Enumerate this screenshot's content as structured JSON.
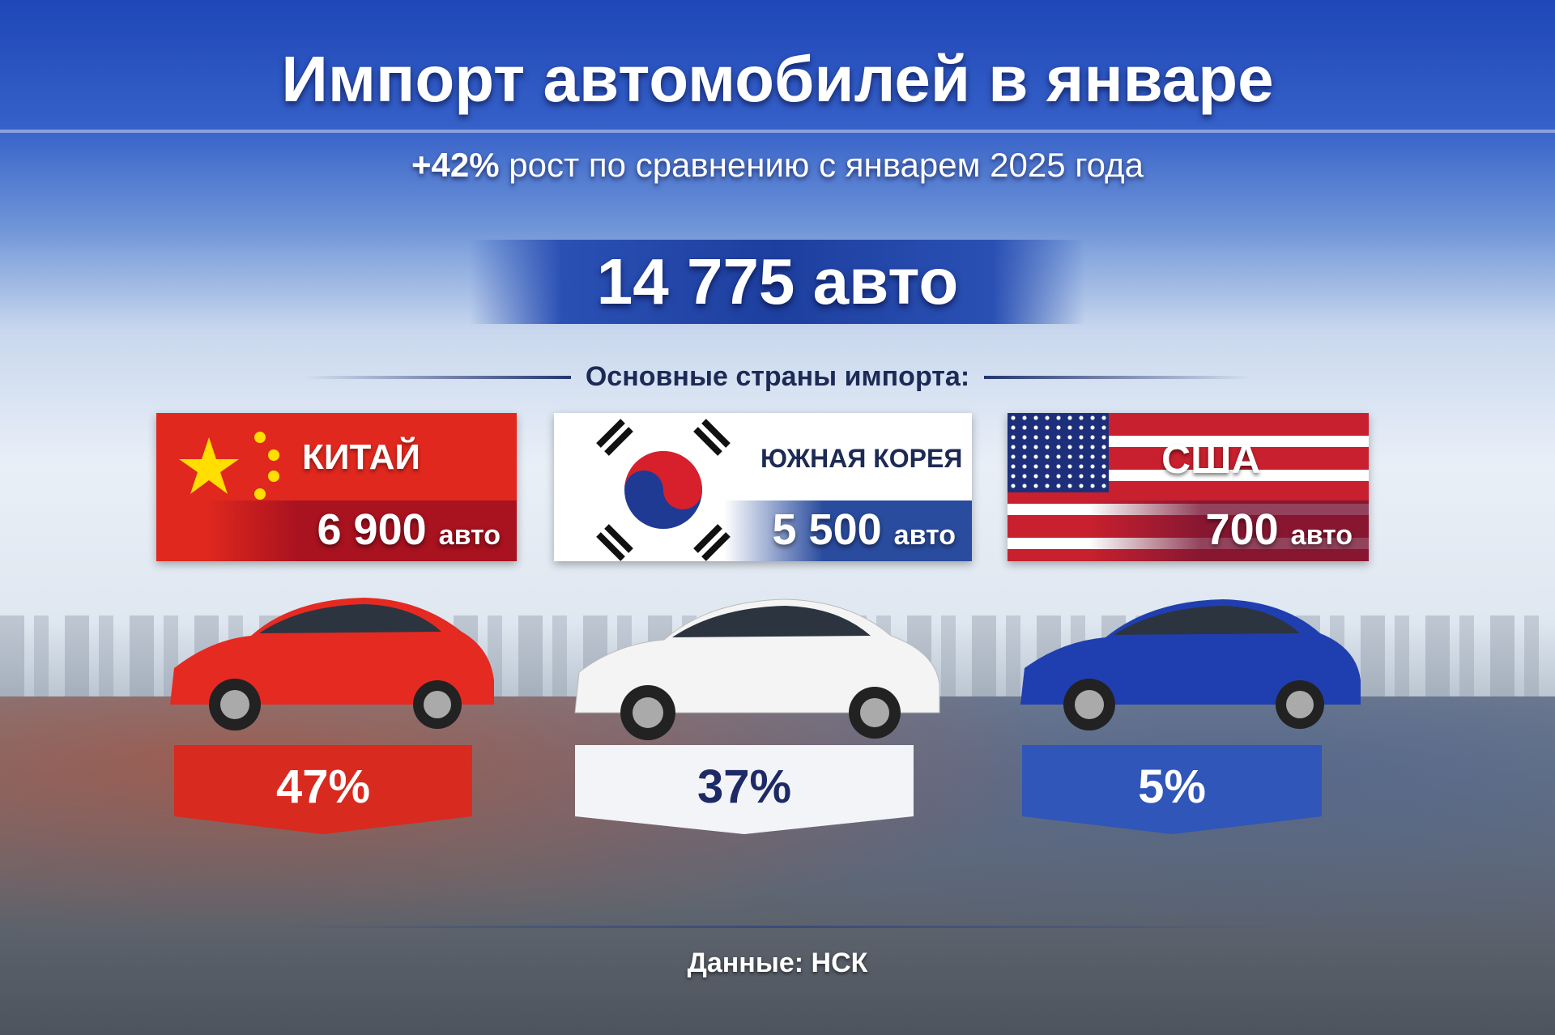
{
  "title": "Импорт автомобилей в январе",
  "subtitle": {
    "growth": "+42%",
    "text": "рост по сравнению с январем 2025 года"
  },
  "total": "14 775 авто",
  "countries_heading": "Основные страны импорта:",
  "countries": [
    {
      "name": "КИТАЙ",
      "count": "6 900",
      "unit": "авто",
      "share": "47%",
      "flag": "china-flag",
      "car_color": "#e52a22"
    },
    {
      "name": "ЮЖНАЯ КОРЕЯ",
      "count": "5 500",
      "unit": "авто",
      "share": "37%",
      "flag": "south-korea-flag",
      "car_color": "#f4f4f4"
    },
    {
      "name": "США",
      "count": "700",
      "unit": "авто",
      "share": "5%",
      "flag": "usa-flag",
      "car_color": "#1f3fb0"
    }
  ],
  "source": "Данные: НСК"
}
